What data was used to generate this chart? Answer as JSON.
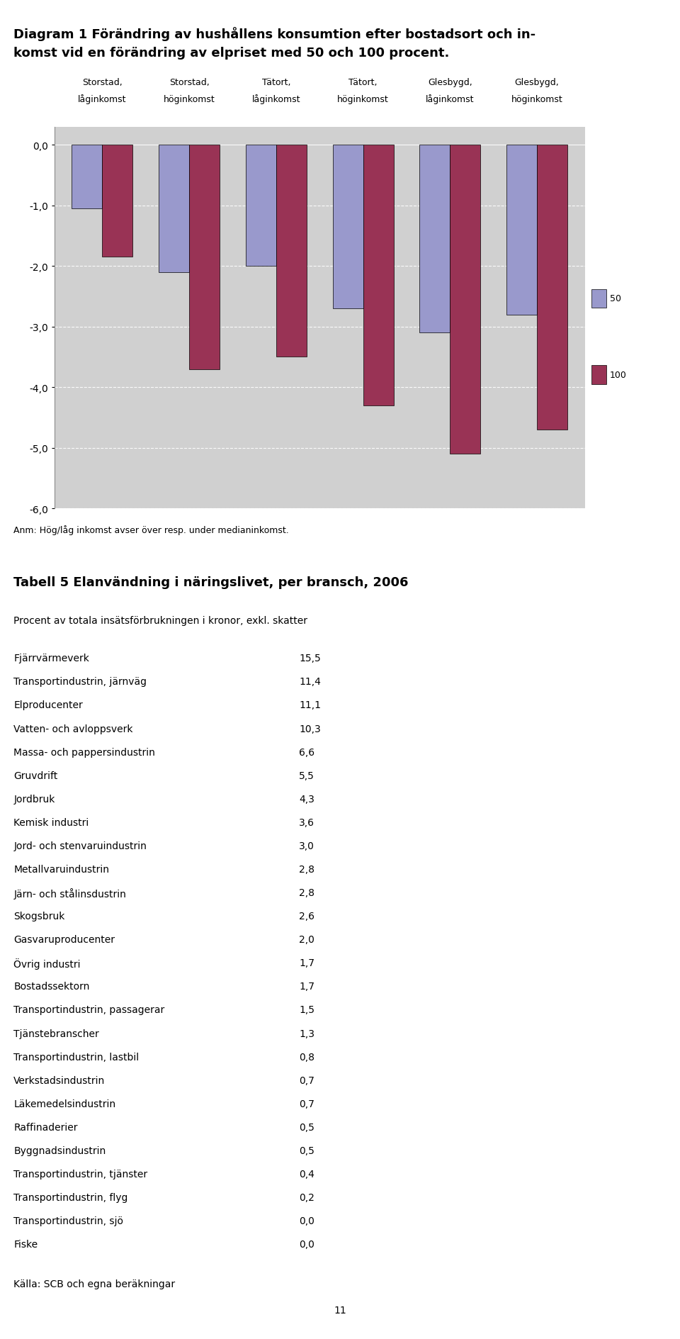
{
  "title_line1": "Diagram 1 Förändring av hushållens konsumtion efter bostadsort och in-",
  "title_line2": "komst vid en förändring av elpriset med 50 och 100 procent.",
  "chart_bg": "#d0d0d0",
  "bar_color_50": "#9999cc",
  "bar_color_100": "#993355",
  "categories_line1": [
    "Storstad,",
    "Storstad,",
    "Tätort,",
    "Tätort,",
    "Glesbygd,",
    "Glesbygd,"
  ],
  "categories_line2": [
    "låginkomst",
    "höginkomst",
    "låginkomst",
    "höginkomst",
    "låginkomst",
    "höginkomst"
  ],
  "values_50": [
    -1.05,
    -2.1,
    -2.0,
    -2.7,
    -3.1,
    -2.8
  ],
  "values_100": [
    -1.85,
    -3.7,
    -3.5,
    -4.3,
    -5.1,
    -4.7
  ],
  "ylim": [
    -6.0,
    0.3
  ],
  "yticks": [
    0.0,
    -1.0,
    -2.0,
    -3.0,
    -4.0,
    -5.0,
    -6.0
  ],
  "anm_text": "Anm: Hög/låg inkomst avser över resp. under medianinkomst.",
  "table_title": "Tabell 5 Elanvändning i näringslivet, per bransch, 2006",
  "table_subtitle": "Procent av totala insätsförbrukningen i kronor, exkl. skatter",
  "table_rows": [
    [
      "Fjärrvärmeverk",
      "15,5"
    ],
    [
      "Transportindustrin, järnväg",
      "11,4"
    ],
    [
      "Elproducenter",
      "11,1"
    ],
    [
      "Vatten- och avloppsverk",
      "10,3"
    ],
    [
      "Massa- och pappersindustrin",
      "6,6"
    ],
    [
      "Gruvdrift",
      "5,5"
    ],
    [
      "Jordbruk",
      "4,3"
    ],
    [
      "Kemisk industri",
      "3,6"
    ],
    [
      "Jord- och stenvaruindustrin",
      "3,0"
    ],
    [
      "Metallvaruindustrin",
      "2,8"
    ],
    [
      "Järn- och stålinsdustrin",
      "2,8"
    ],
    [
      "Skogsbruk",
      "2,6"
    ],
    [
      "Gasvaruproducenter",
      "2,0"
    ],
    [
      "Övrig industri",
      "1,7"
    ],
    [
      "Bostadssektorn",
      "1,7"
    ],
    [
      "Transportindustrin, passagerar",
      "1,5"
    ],
    [
      "Tjänstebranscher",
      "1,3"
    ],
    [
      "Transportindustrin, lastbil",
      "0,8"
    ],
    [
      "Verkstadsindustrin",
      "0,7"
    ],
    [
      "Läkemedelsindustrin",
      "0,7"
    ],
    [
      "Raffinaderier",
      "0,5"
    ],
    [
      "Byggnadsindustrin",
      "0,5"
    ],
    [
      "Transportindustrin, tjänster",
      "0,4"
    ],
    [
      "Transportindustrin, flyg",
      "0,2"
    ],
    [
      "Transportindustrin, sjö",
      "0,0"
    ],
    [
      "Fiske",
      "0,0"
    ]
  ],
  "source_text": "Källa: SCB och egna beräkningar",
  "page_number": "11"
}
